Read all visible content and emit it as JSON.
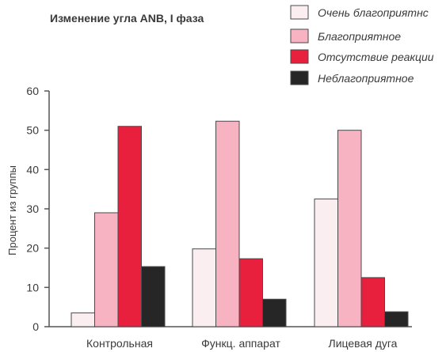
{
  "chart_data": {
    "type": "bar",
    "title": "Изменение угла ANB, I фаза",
    "xlabel": "",
    "ylabel": "Процент из группы",
    "ylim": [
      0,
      60
    ],
    "yticks": [
      0,
      10,
      20,
      30,
      40,
      50,
      60
    ],
    "categories": [
      "Контрольная",
      "Функц. аппарат",
      "Лицевая дуга"
    ],
    "series": [
      {
        "name": "Очень благоприятнс",
        "color": "#fbeef0",
        "values": [
          3.5,
          19.8,
          32.5
        ]
      },
      {
        "name": "Благоприятное",
        "color": "#f7b3c1",
        "values": [
          29,
          52.3,
          50
        ]
      },
      {
        "name": "Отсутствие реакции",
        "color": "#e8203e",
        "values": [
          51,
          17.3,
          12.5
        ]
      },
      {
        "name": "Неблагоприятное",
        "color": "#262626",
        "values": [
          15.3,
          7,
          3.8
        ]
      }
    ],
    "legend_position": "top-right",
    "grid": false
  }
}
